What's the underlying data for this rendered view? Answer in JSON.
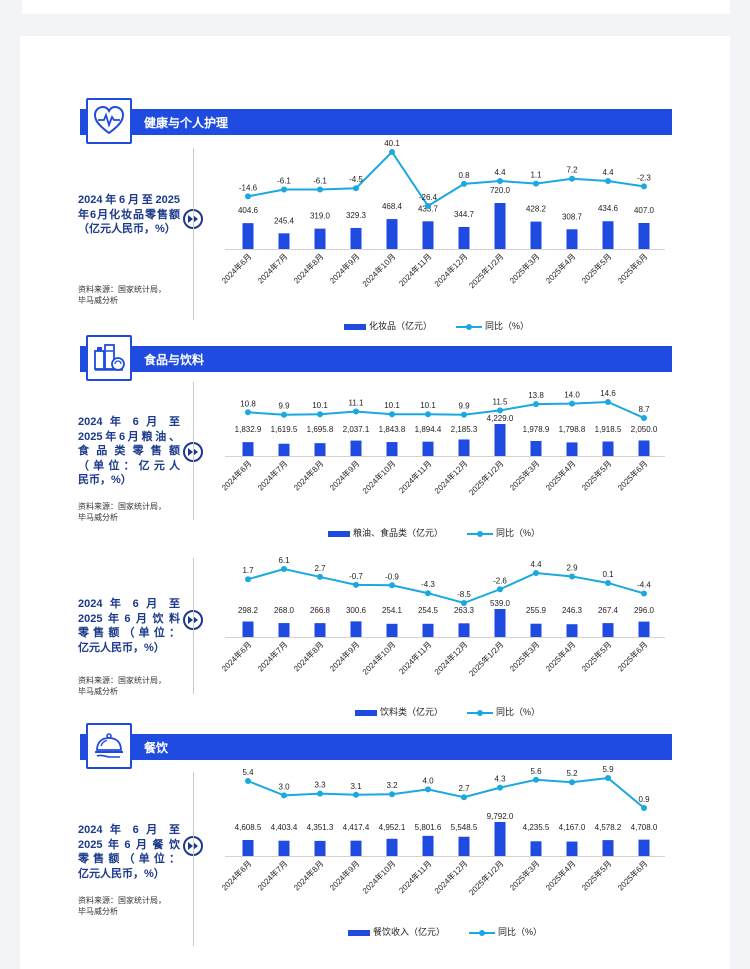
{
  "colors": {
    "accent": "#1f4be0",
    "line": "#19a8e0",
    "heading": "#1b3a8c"
  },
  "categories": [
    "2024年6月",
    "2024年7月",
    "2024年8月",
    "2024年9月",
    "2024年10月",
    "2024年11月",
    "2024年12月",
    "2025年1/2月",
    "2025年3月",
    "2025年4月",
    "2025年5月",
    "2025年6月"
  ],
  "sections": [
    {
      "title": "健康与个人护理",
      "icon": "heart-pulse-icon"
    },
    {
      "title": "食品与饮料",
      "icon": "food-beverage-icon"
    },
    {
      "title": "餐饮",
      "icon": "cloche-icon"
    }
  ],
  "panels": [
    {
      "desc": [
        "2024年6月至2025",
        "年6月化妆品零售额",
        "（亿元人民币，%）"
      ],
      "source": [
        "资料来源：国家统计局，",
        "毕马威分析"
      ]
    },
    {
      "desc": [
        "2024 年 6 月 至",
        "2025年6月粮油、",
        "食 品 类 零 售 额",
        "（单位：亿元人",
        "民币，%）"
      ],
      "source": [
        "资料来源：国家统计局，",
        "毕马威分析"
      ]
    },
    {
      "desc": [
        "2024 年 6 月 至",
        "2025年6月饮料",
        "零售额（单位：",
        "亿元人民币，%）"
      ],
      "source": [
        "资料来源：国家统计局，",
        "毕马威分析"
      ]
    },
    {
      "desc": [
        "2024 年 6 月 至",
        "2025年6月餐饮",
        "零售额（单位：",
        "亿元人民币，%）"
      ],
      "source": [
        "资料来源：国家统计局，",
        "毕马威分析"
      ]
    }
  ],
  "chart_data": [
    {
      "type": "bar+line",
      "series": [
        {
          "name": "化妆品（亿元）",
          "kind": "bar",
          "values": [
            404.6,
            245.4,
            319.0,
            329.3,
            468.4,
            433.7,
            344.7,
            720.0,
            428.2,
            308.7,
            434.6,
            407.0
          ],
          "labels": [
            "404.6",
            "245.4",
            "319.0",
            "329.3",
            "468.4",
            "433.7",
            "344.7",
            "720.0",
            "428.2",
            "308.7",
            "434.6",
            "407.0"
          ]
        },
        {
          "name": "同比（%）",
          "kind": "line",
          "values": [
            -14.6,
            -6.1,
            -6.1,
            -4.5,
            40.1,
            -26.4,
            0.8,
            4.4,
            1.1,
            7.2,
            4.4,
            -2.3
          ],
          "labels": [
            "-14.6",
            "-6.1",
            "-6.1",
            "-4.5",
            "40.1",
            "-26.4",
            "0.8",
            "4.4",
            "1.1",
            "7.2",
            "4.4",
            "-2.3"
          ]
        }
      ]
    },
    {
      "type": "bar+line",
      "series": [
        {
          "name": "粮油、食品类（亿元）",
          "kind": "bar",
          "values": [
            1832.9,
            1619.5,
            1695.8,
            2037.1,
            1843.8,
            1894.4,
            2185.3,
            4229.0,
            1978.9,
            1798.8,
            1918.5,
            2050.0
          ],
          "labels": [
            "1,832.9",
            "1,619.5",
            "1,695.8",
            "2,037.1",
            "1,843.8",
            "1,894.4",
            "2,185.3",
            "4,229.0",
            "1,978.9",
            "1,798.8",
            "1,918.5",
            "2,050.0"
          ]
        },
        {
          "name": "同比（%）",
          "kind": "line",
          "values": [
            10.8,
            9.9,
            10.1,
            11.1,
            10.1,
            10.1,
            9.9,
            11.5,
            13.8,
            14.0,
            14.6,
            8.7
          ],
          "labels": [
            "10.8",
            "9.9",
            "10.1",
            "11.1",
            "10.1",
            "10.1",
            "9.9",
            "11.5",
            "13.8",
            "14.0",
            "14.6",
            "8.7"
          ]
        }
      ]
    },
    {
      "type": "bar+line",
      "series": [
        {
          "name": "饮料类（亿元）",
          "kind": "bar",
          "values": [
            298.2,
            268.0,
            266.8,
            300.6,
            254.1,
            254.5,
            263.3,
            539.0,
            255.9,
            246.3,
            267.4,
            296.0
          ],
          "labels": [
            "298.2",
            "268.0",
            "266.8",
            "300.6",
            "254.1",
            "254.5",
            "263.3",
            "539.0",
            "255.9",
            "246.3",
            "267.4",
            "296.0"
          ]
        },
        {
          "name": "同比（%）",
          "kind": "line",
          "values": [
            1.7,
            6.1,
            2.7,
            -0.7,
            -0.9,
            -4.3,
            -8.5,
            -2.6,
            4.4,
            2.9,
            0.1,
            -4.4
          ],
          "labels": [
            "1.7",
            "6.1",
            "2.7",
            "-0.7",
            "-0.9",
            "-4.3",
            "-8.5",
            "-2.6",
            "4.4",
            "2.9",
            "0.1",
            "-4.4"
          ]
        }
      ]
    },
    {
      "type": "bar+line",
      "series": [
        {
          "name": "餐饮收入（亿元）",
          "kind": "bar",
          "values": [
            4608.5,
            4403.4,
            4351.3,
            4417.4,
            4952.1,
            5801.6,
            5548.5,
            9792.0,
            4235.5,
            4167.0,
            4578.2,
            4708.0
          ],
          "labels": [
            "4,608.5",
            "4,403.4",
            "4,351.3",
            "4,417.4",
            "4,952.1",
            "5,801.6",
            "5,548.5",
            "9,792.0",
            "4,235.5",
            "4,167.0",
            "4,578.2",
            "4,708.0"
          ]
        },
        {
          "name": "同比（%）",
          "kind": "line",
          "values": [
            5.4,
            3.0,
            3.3,
            3.1,
            3.2,
            4.0,
            2.7,
            4.3,
            5.6,
            5.2,
            5.9,
            0.9
          ],
          "labels": [
            "5.4",
            "3.0",
            "3.3",
            "3.1",
            "3.2",
            "4.0",
            "2.7",
            "4.3",
            "5.6",
            "5.2",
            "5.9",
            "0.9"
          ]
        }
      ]
    }
  ]
}
